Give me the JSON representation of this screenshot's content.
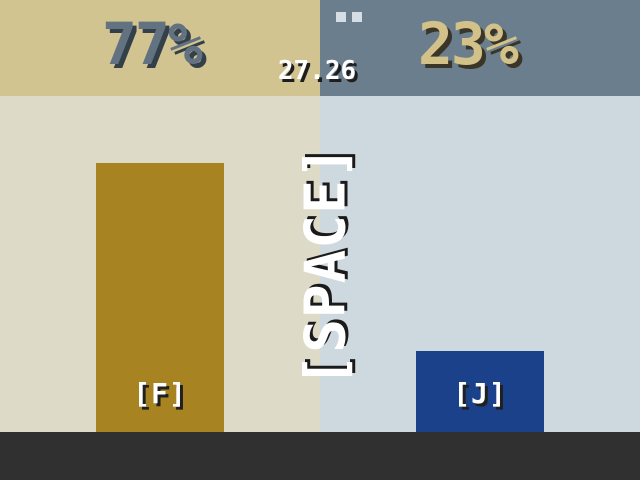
{
  "left": {
    "percent": "77%",
    "key_label": "[F]",
    "fill_level": 0.8,
    "color_top": "#d2c490",
    "color_bg": "#dedac8",
    "color_bar": "#a88322"
  },
  "right": {
    "percent": "23%",
    "key_label": "[J]",
    "fill_level": 0.24,
    "color_top": "#6a7e8e",
    "color_bg": "#ced8df",
    "color_bar": "#1b418a"
  },
  "timer": "27.26",
  "lives_remaining": 2,
  "space_hint": "[SPACE]"
}
